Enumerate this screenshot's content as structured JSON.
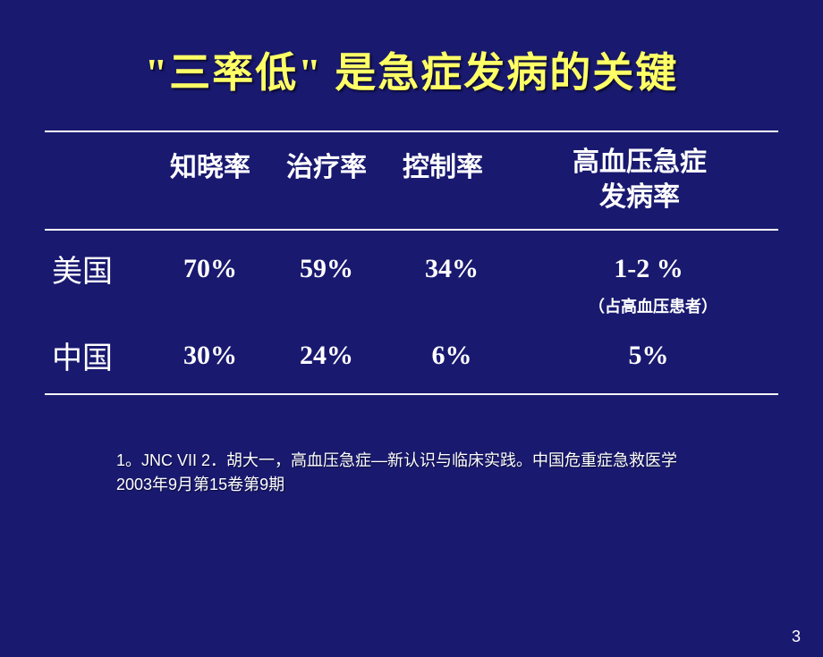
{
  "title": "\"三率低\" 是急症发病的关键",
  "table": {
    "headers": {
      "col2": "知晓率",
      "col3": "治疗率",
      "col4": "控制率",
      "col5_line1": "高血压急症",
      "col5_line2": "发病率"
    },
    "rows": [
      {
        "label": "美国",
        "c2": "70%",
        "c3": "59%",
        "c4": "34%",
        "c5": "1-2 %"
      },
      {
        "label": "中国",
        "c2": "30%",
        "c3": "24%",
        "c4": "6%",
        "c5": "5%"
      }
    ],
    "inline_note": "（占高血压患者）"
  },
  "reference": "1。JNC VII   2．胡大一，高血压急症—新认识与临床实践。中国危重症急救医学2003年9月第15卷第9期",
  "page_number": "3",
  "styling": {
    "background_color": "#191970",
    "title_color": "#ffff66",
    "text_color": "#ffffff",
    "rule_color": "#ffffff",
    "title_fontsize": 46,
    "header_fontsize": 30,
    "rowlabel_fontsize": 34,
    "data_fontsize": 30,
    "note_fontsize": 18,
    "ref_fontsize": 18,
    "pagenum_fontsize": 18
  }
}
